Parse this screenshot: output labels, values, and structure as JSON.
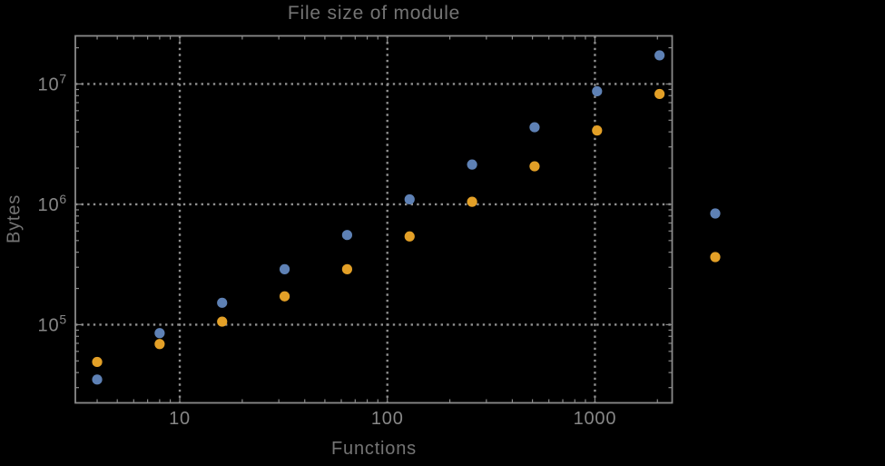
{
  "page": {
    "background": "#000000"
  },
  "chart_data": {
    "type": "scatter",
    "title": "File size of module",
    "xlabel": "Functions",
    "ylabel": "Bytes",
    "x_scale": "log",
    "y_scale": "log",
    "xlim": [
      3.14,
      2355
    ],
    "ylim": [
      22400,
      25100000
    ],
    "grid": "dotted at major decade ticks",
    "x_ticks": [
      {
        "value": 10,
        "label": "10"
      },
      {
        "value": 100,
        "label": "100"
      },
      {
        "value": 1000,
        "label": "1000"
      }
    ],
    "y_ticks": [
      {
        "value": 100000,
        "base": "10",
        "exponent": "5"
      },
      {
        "value": 1000000,
        "base": "10",
        "exponent": "6"
      },
      {
        "value": 10000000,
        "base": "10",
        "exponent": "7"
      }
    ],
    "series": [
      {
        "color": "#5e81b5",
        "marker": "circle",
        "points": [
          [
            4,
            35000
          ],
          [
            8,
            85000
          ],
          [
            16,
            152000
          ],
          [
            32,
            289000
          ],
          [
            64,
            556000
          ],
          [
            128,
            1100000
          ],
          [
            256,
            2140000
          ],
          [
            512,
            4370000
          ],
          [
            1024,
            8700000
          ],
          [
            2048,
            17300000
          ]
        ]
      },
      {
        "color": "#e3a027",
        "marker": "circle",
        "points": [
          [
            4,
            49000
          ],
          [
            8,
            69000
          ],
          [
            16,
            106000
          ],
          [
            32,
            172000
          ],
          [
            64,
            289000
          ],
          [
            128,
            541000
          ],
          [
            256,
            1050000
          ],
          [
            512,
            2070000
          ],
          [
            1024,
            4110000
          ],
          [
            2048,
            8260000
          ]
        ]
      }
    ],
    "legend": {
      "position": "outside-right-center",
      "markers": [
        {
          "color": "#5e81b5"
        },
        {
          "color": "#e3a027"
        }
      ]
    }
  },
  "colors": {
    "background": "#000000",
    "frame": "#8a8a8a",
    "grid": "#8f8f8f",
    "tick_label": "#878787",
    "text": "#747474",
    "series_blue": "#5e81b5",
    "series_orange": "#e3a027"
  }
}
